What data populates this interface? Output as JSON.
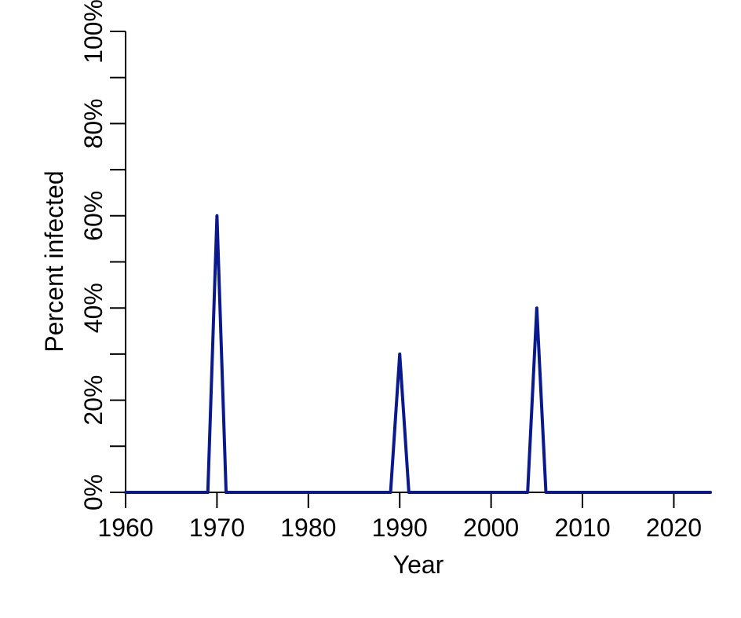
{
  "chart_data": {
    "type": "line",
    "title": "",
    "xlabel": "Year",
    "ylabel": "Percent infected",
    "xlim": [
      1960,
      2024
    ],
    "ylim": [
      0,
      100
    ],
    "x_ticks": [
      1960,
      1970,
      1980,
      1990,
      2000,
      2010,
      2020
    ],
    "x_tick_labels": [
      "1960",
      "1970",
      "1980",
      "1990",
      "2000",
      "2010",
      "2020"
    ],
    "y_major_ticks": [
      0,
      20,
      40,
      60,
      80,
      100
    ],
    "y_minor_ticks": [
      10,
      30,
      50,
      70,
      90
    ],
    "y_tick_labels": [
      "0%",
      "20%",
      "40%",
      "60%",
      "80%",
      "100%"
    ],
    "grid": false,
    "series": [
      {
        "color": "#0a1a8c",
        "x": [
          1960,
          1969,
          1970,
          1971,
          1989,
          1990,
          1991,
          2004,
          2005,
          2006,
          2024
        ],
        "y": [
          0,
          0,
          60,
          0,
          0,
          30,
          0,
          0,
          40,
          0,
          0
        ]
      }
    ]
  }
}
